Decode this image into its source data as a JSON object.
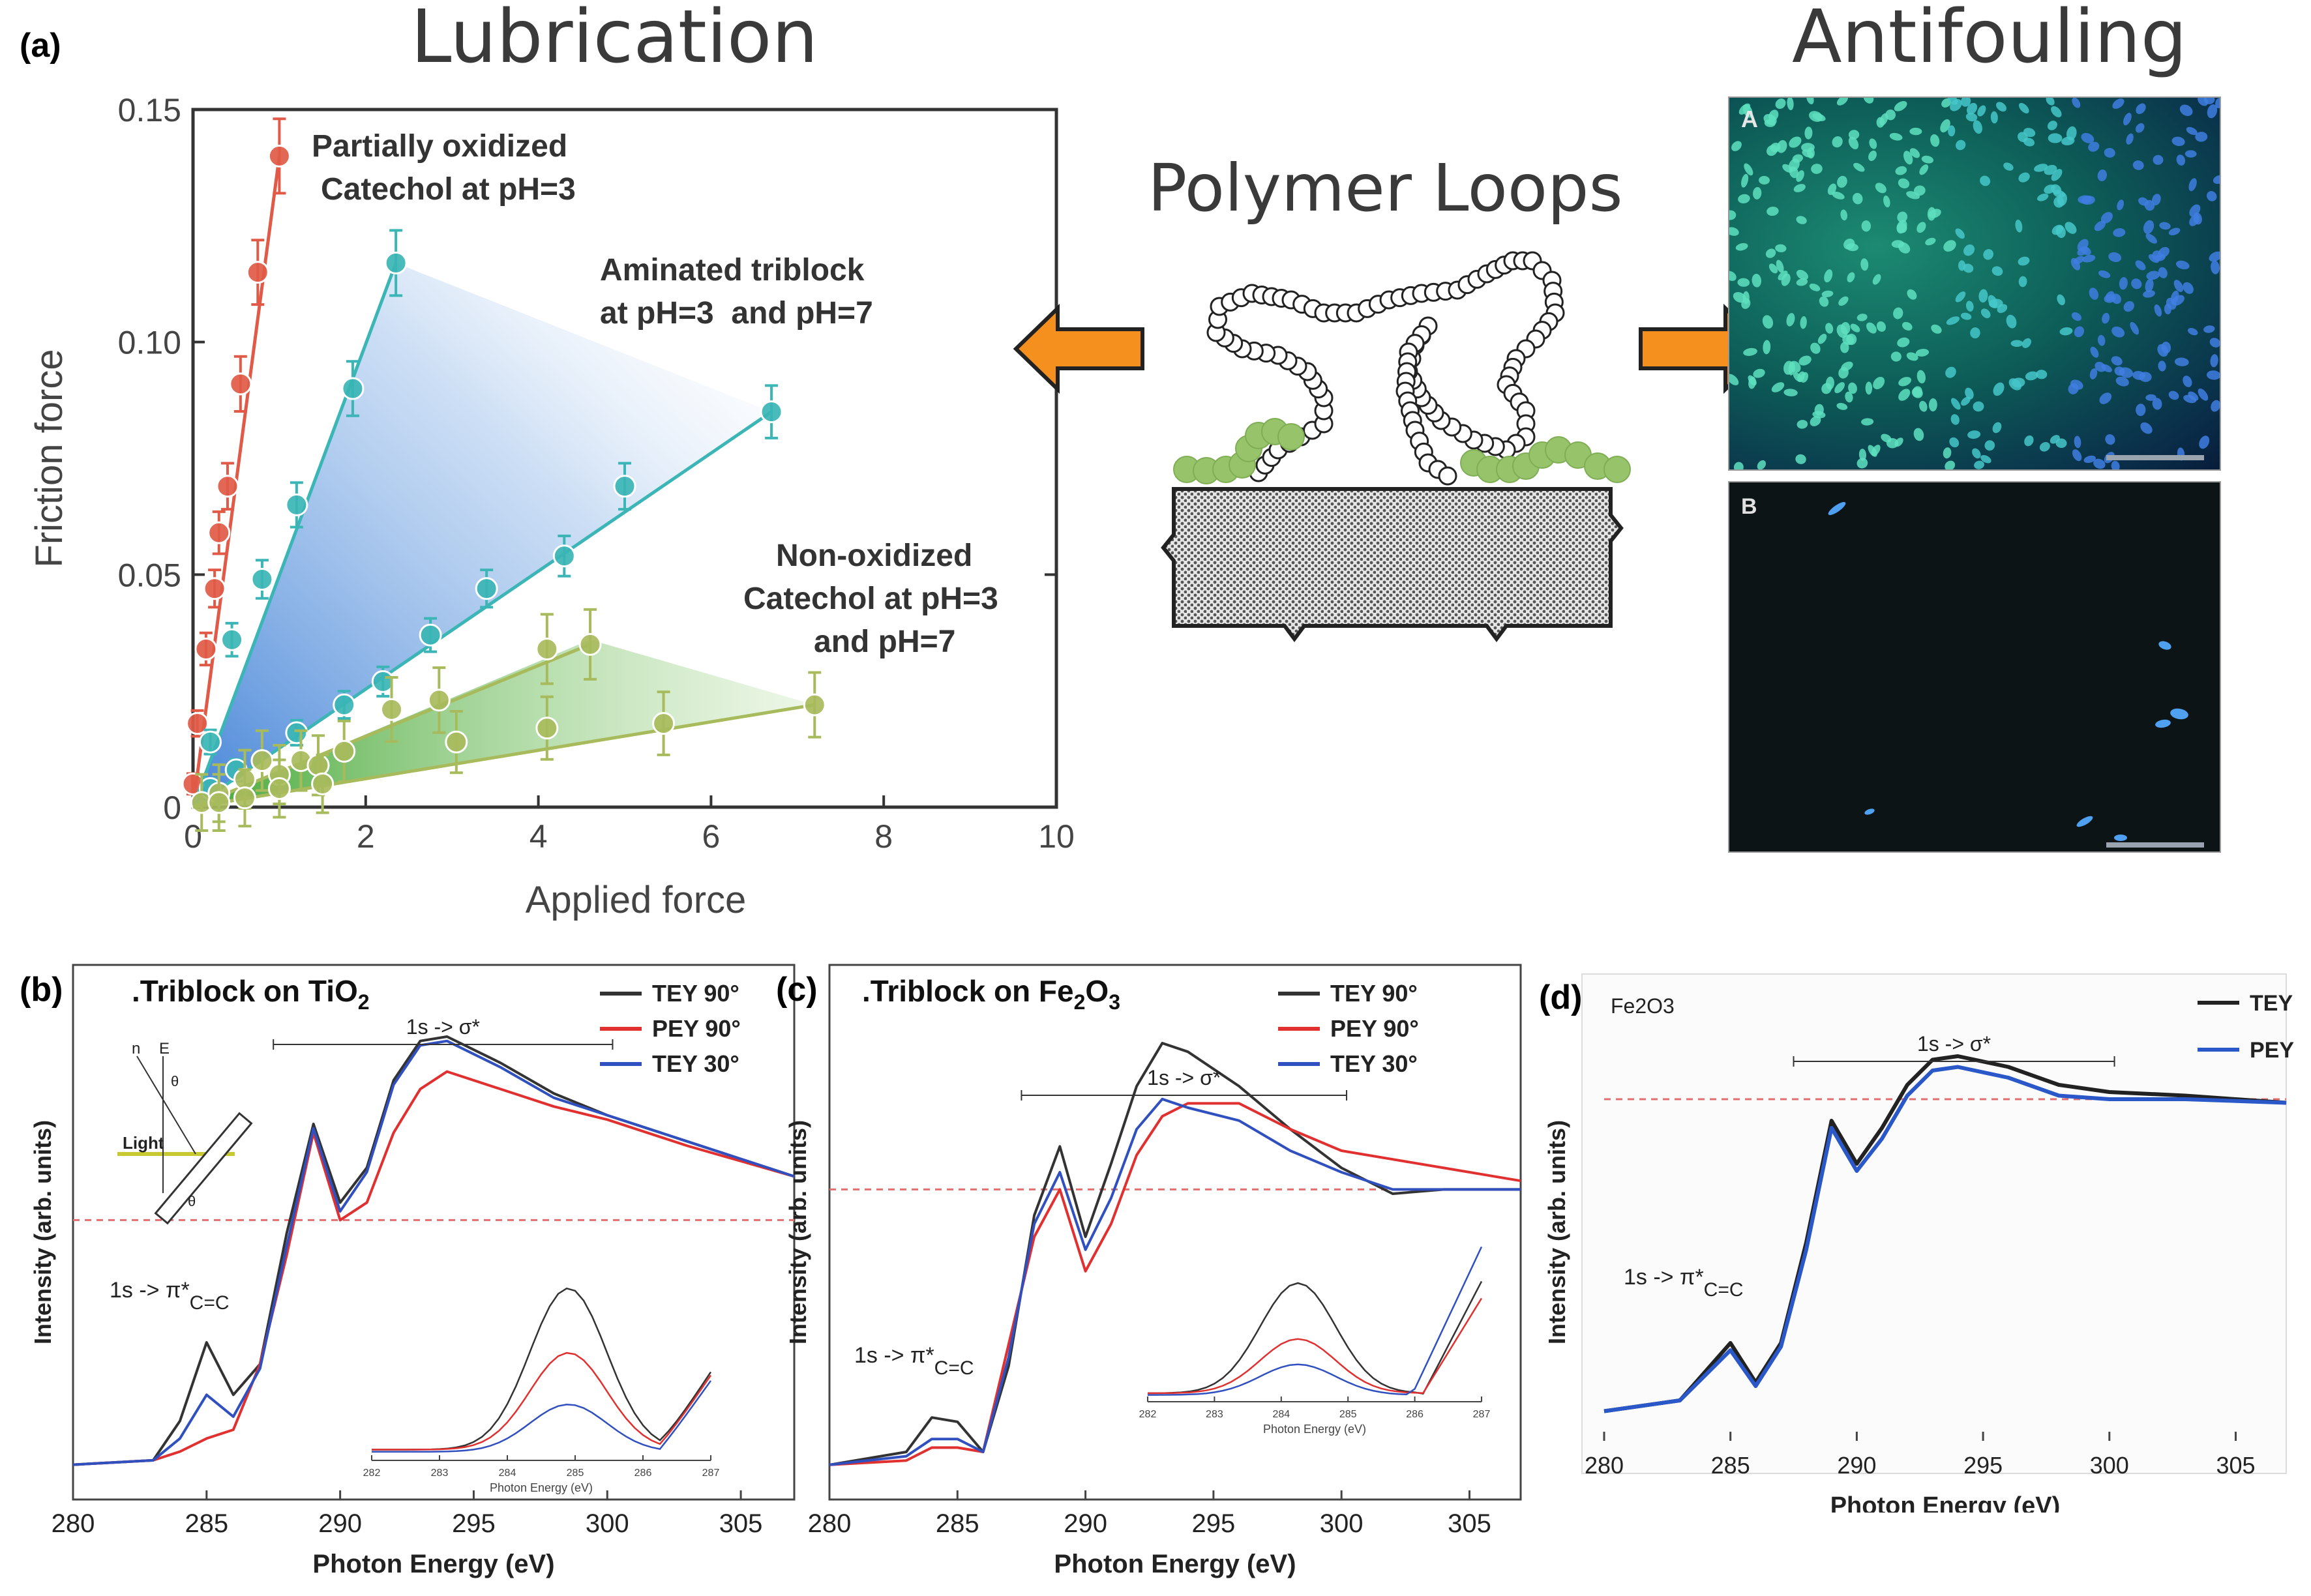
{
  "panel_a": {
    "label": "(a)",
    "heading_left": "Lubrication",
    "heading_right": "Antifouling",
    "center_title": "Polymer Loops",
    "micrograph_a_label": "A",
    "micrograph_b_label": "B",
    "chart_data": {
      "type": "scatter",
      "xlabel": "Applied force",
      "ylabel": "Friction force",
      "xlim": [
        0,
        10
      ],
      "ylim": [
        0,
        0.15
      ],
      "xticks": [
        "0",
        "2",
        "4",
        "6",
        "8",
        "10"
      ],
      "yticks": [
        "0",
        "0.05",
        "0.10",
        "0.15"
      ],
      "annotations": [
        "Partially oxidized",
        "Catechol at pH=3",
        "Aminated triblock",
        "at pH=3  and pH=7",
        "Non-oxidized",
        "Catechol at pH=3",
        "and pH=7"
      ],
      "series": [
        {
          "color": "#e05a47",
          "x": [
            0,
            0.05,
            0.15,
            0.25,
            0.3,
            0.4,
            0.55,
            0.75,
            1.0
          ],
          "y": [
            0.005,
            0.018,
            0.034,
            0.047,
            0.059,
            0.069,
            0.091,
            0.115,
            0.14
          ]
        },
        {
          "color": "#3bb5b5",
          "x": [
            0.2,
            0.45,
            0.8,
            1.2,
            1.85,
            2.35
          ],
          "y": [
            0.014,
            0.036,
            0.049,
            0.065,
            0.09,
            0.117
          ]
        },
        {
          "color": "#3bb5b5",
          "x": [
            0.2,
            0.5,
            1.2,
            1.75,
            2.2,
            2.75,
            3.4,
            4.3,
            5.0,
            6.7
          ],
          "y": [
            0.004,
            0.008,
            0.016,
            0.022,
            0.027,
            0.037,
            0.047,
            0.054,
            0.069,
            0.085
          ]
        },
        {
          "color": "#a8bb5c",
          "x": [
            0.1,
            0.3,
            0.6,
            0.8,
            1.0,
            1.25,
            1.45,
            1.75,
            2.3,
            2.85,
            4.1,
            4.6
          ],
          "y": [
            0.001,
            0.003,
            0.006,
            0.01,
            0.007,
            0.01,
            0.009,
            0.012,
            0.021,
            0.023,
            0.034,
            0.035
          ]
        },
        {
          "color": "#a8bb5c",
          "x": [
            0.3,
            0.6,
            1.0,
            1.5,
            3.05,
            4.1,
            5.45,
            7.2
          ],
          "y": [
            0.001,
            0.002,
            0.004,
            0.005,
            0.014,
            0.017,
            0.018,
            0.022
          ]
        }
      ]
    }
  },
  "panel_b": {
    "label": "(b)",
    "title": ".Triblock on TiO",
    "title_sub": "2",
    "chart_data": {
      "type": "line",
      "xlabel": "Photon Energy (eV)",
      "ylabel": "Intensity (arb. units)",
      "xlim": [
        280,
        307
      ],
      "xticks": [
        "280",
        "285",
        "290",
        "295",
        "300",
        "305"
      ],
      "legend": [
        "TEY 90°",
        "PEY 90°",
        "TEY 30°"
      ],
      "annotation_sigma": "1s -> σ*",
      "annotation_pi": "1s -> π*",
      "annotation_pi_sub": "C=C",
      "inset_xticks": [
        "282",
        "283",
        "284",
        "285",
        "286",
        "287"
      ],
      "inset_xlabel": "Photon Energy (eV)",
      "schematic_n": "n",
      "schematic_e": "E",
      "schematic_theta": "θ",
      "schematic_light": "Light",
      "series": [
        {
          "name": "TEY 90°",
          "color": "#333333",
          "x": [
            280,
            283,
            284,
            285,
            286,
            287,
            288,
            289,
            290,
            291,
            292,
            293,
            294,
            296,
            298,
            300,
            303,
            307
          ],
          "y": [
            0.02,
            0.03,
            0.12,
            0.3,
            0.18,
            0.25,
            0.55,
            0.8,
            0.62,
            0.7,
            0.9,
            0.99,
            1.0,
            0.94,
            0.87,
            0.82,
            0.76,
            0.68
          ]
        },
        {
          "name": "PEY 90°",
          "color": "#e03030",
          "x": [
            280,
            283,
            284,
            285,
            286,
            287,
            288,
            289,
            290,
            291,
            292,
            293,
            294,
            296,
            298,
            300,
            303,
            307
          ],
          "y": [
            0.02,
            0.03,
            0.05,
            0.08,
            0.1,
            0.25,
            0.5,
            0.78,
            0.58,
            0.62,
            0.78,
            0.88,
            0.92,
            0.88,
            0.84,
            0.81,
            0.75,
            0.68
          ]
        },
        {
          "name": "TEY 30°",
          "color": "#3050c0",
          "x": [
            280,
            283,
            284,
            285,
            286,
            287,
            288,
            289,
            290,
            291,
            292,
            293,
            294,
            296,
            298,
            300,
            303,
            307
          ],
          "y": [
            0.02,
            0.03,
            0.08,
            0.18,
            0.13,
            0.24,
            0.52,
            0.79,
            0.6,
            0.69,
            0.89,
            0.98,
            0.99,
            0.93,
            0.86,
            0.82,
            0.76,
            0.68
          ]
        }
      ]
    }
  },
  "panel_c": {
    "label": "(c)",
    "title": ".Triblock on Fe",
    "title_sub1": "2",
    "title_mid": "O",
    "title_sub2": "3",
    "chart_data": {
      "type": "line",
      "xlabel": "Photon Energy (eV)",
      "ylabel": "Intensity (arb. units)",
      "xlim": [
        280,
        307
      ],
      "xticks": [
        "280",
        "285",
        "290",
        "295",
        "300",
        "305"
      ],
      "legend": [
        "TEY 90°",
        "PEY 90°",
        "TEY 30°"
      ],
      "annotation_sigma": "1s -> σ*",
      "annotation_pi": "1s -> π*",
      "annotation_pi_sub": "C=C",
      "inset_xticks": [
        "282",
        "283",
        "284",
        "285",
        "286",
        "287"
      ],
      "inset_xlabel": "Photon Energy (eV)",
      "series": [
        {
          "name": "TEY 90°",
          "color": "#333333",
          "x": [
            280,
            283,
            284,
            285,
            286,
            287,
            288,
            289,
            290,
            291,
            292,
            293,
            294,
            296,
            298,
            300,
            302,
            304,
            307
          ],
          "y": [
            0.02,
            0.05,
            0.13,
            0.12,
            0.05,
            0.25,
            0.6,
            0.76,
            0.55,
            0.72,
            0.9,
            1.0,
            0.98,
            0.9,
            0.8,
            0.71,
            0.65,
            0.66,
            0.66
          ]
        },
        {
          "name": "PEY 90°",
          "color": "#e03030",
          "x": [
            280,
            283,
            284,
            285,
            286,
            287,
            288,
            289,
            290,
            291,
            292,
            293,
            294,
            296,
            298,
            300,
            302,
            304,
            307
          ],
          "y": [
            0.02,
            0.03,
            0.06,
            0.06,
            0.05,
            0.3,
            0.55,
            0.66,
            0.47,
            0.58,
            0.74,
            0.83,
            0.86,
            0.86,
            0.8,
            0.75,
            0.73,
            0.71,
            0.68
          ]
        },
        {
          "name": "TEY 30°",
          "color": "#3050c0",
          "x": [
            280,
            283,
            284,
            285,
            286,
            287,
            288,
            289,
            290,
            291,
            292,
            293,
            294,
            296,
            298,
            300,
            302,
            304,
            307
          ],
          "y": [
            0.02,
            0.04,
            0.08,
            0.08,
            0.05,
            0.27,
            0.58,
            0.7,
            0.52,
            0.64,
            0.8,
            0.87,
            0.85,
            0.82,
            0.75,
            0.7,
            0.66,
            0.66,
            0.66
          ]
        }
      ]
    }
  },
  "panel_d": {
    "label": "(d)",
    "title": "Fe2O3",
    "chart_data": {
      "type": "line",
      "xlabel": "Photon Energy (eV)",
      "ylabel": "Intensity (arb. units)",
      "xlim": [
        280,
        307
      ],
      "xticks": [
        "280",
        "285",
        "290",
        "295",
        "300",
        "305"
      ],
      "legend": [
        "TEY",
        "PEY"
      ],
      "annotation_sigma": "1s -> σ*",
      "annotation_pi": "1s -> π*",
      "annotation_pi_sub": "C=C",
      "series": [
        {
          "name": "TEY",
          "color": "#222222",
          "x": [
            280,
            283,
            284,
            285,
            286,
            287,
            288,
            289,
            290,
            291,
            292,
            293,
            294,
            296,
            298,
            300,
            303,
            307
          ],
          "y": [
            0.01,
            0.04,
            0.12,
            0.2,
            0.09,
            0.2,
            0.48,
            0.82,
            0.7,
            0.8,
            0.92,
            0.99,
            1.0,
            0.97,
            0.92,
            0.9,
            0.89,
            0.87
          ]
        },
        {
          "name": "PEY",
          "color": "#2a58c8",
          "x": [
            280,
            283,
            284,
            285,
            286,
            287,
            288,
            289,
            290,
            291,
            292,
            293,
            294,
            296,
            298,
            300,
            303,
            307
          ],
          "y": [
            0.01,
            0.04,
            0.11,
            0.18,
            0.08,
            0.19,
            0.46,
            0.8,
            0.68,
            0.77,
            0.89,
            0.96,
            0.97,
            0.94,
            0.89,
            0.88,
            0.88,
            0.87
          ]
        }
      ]
    }
  }
}
